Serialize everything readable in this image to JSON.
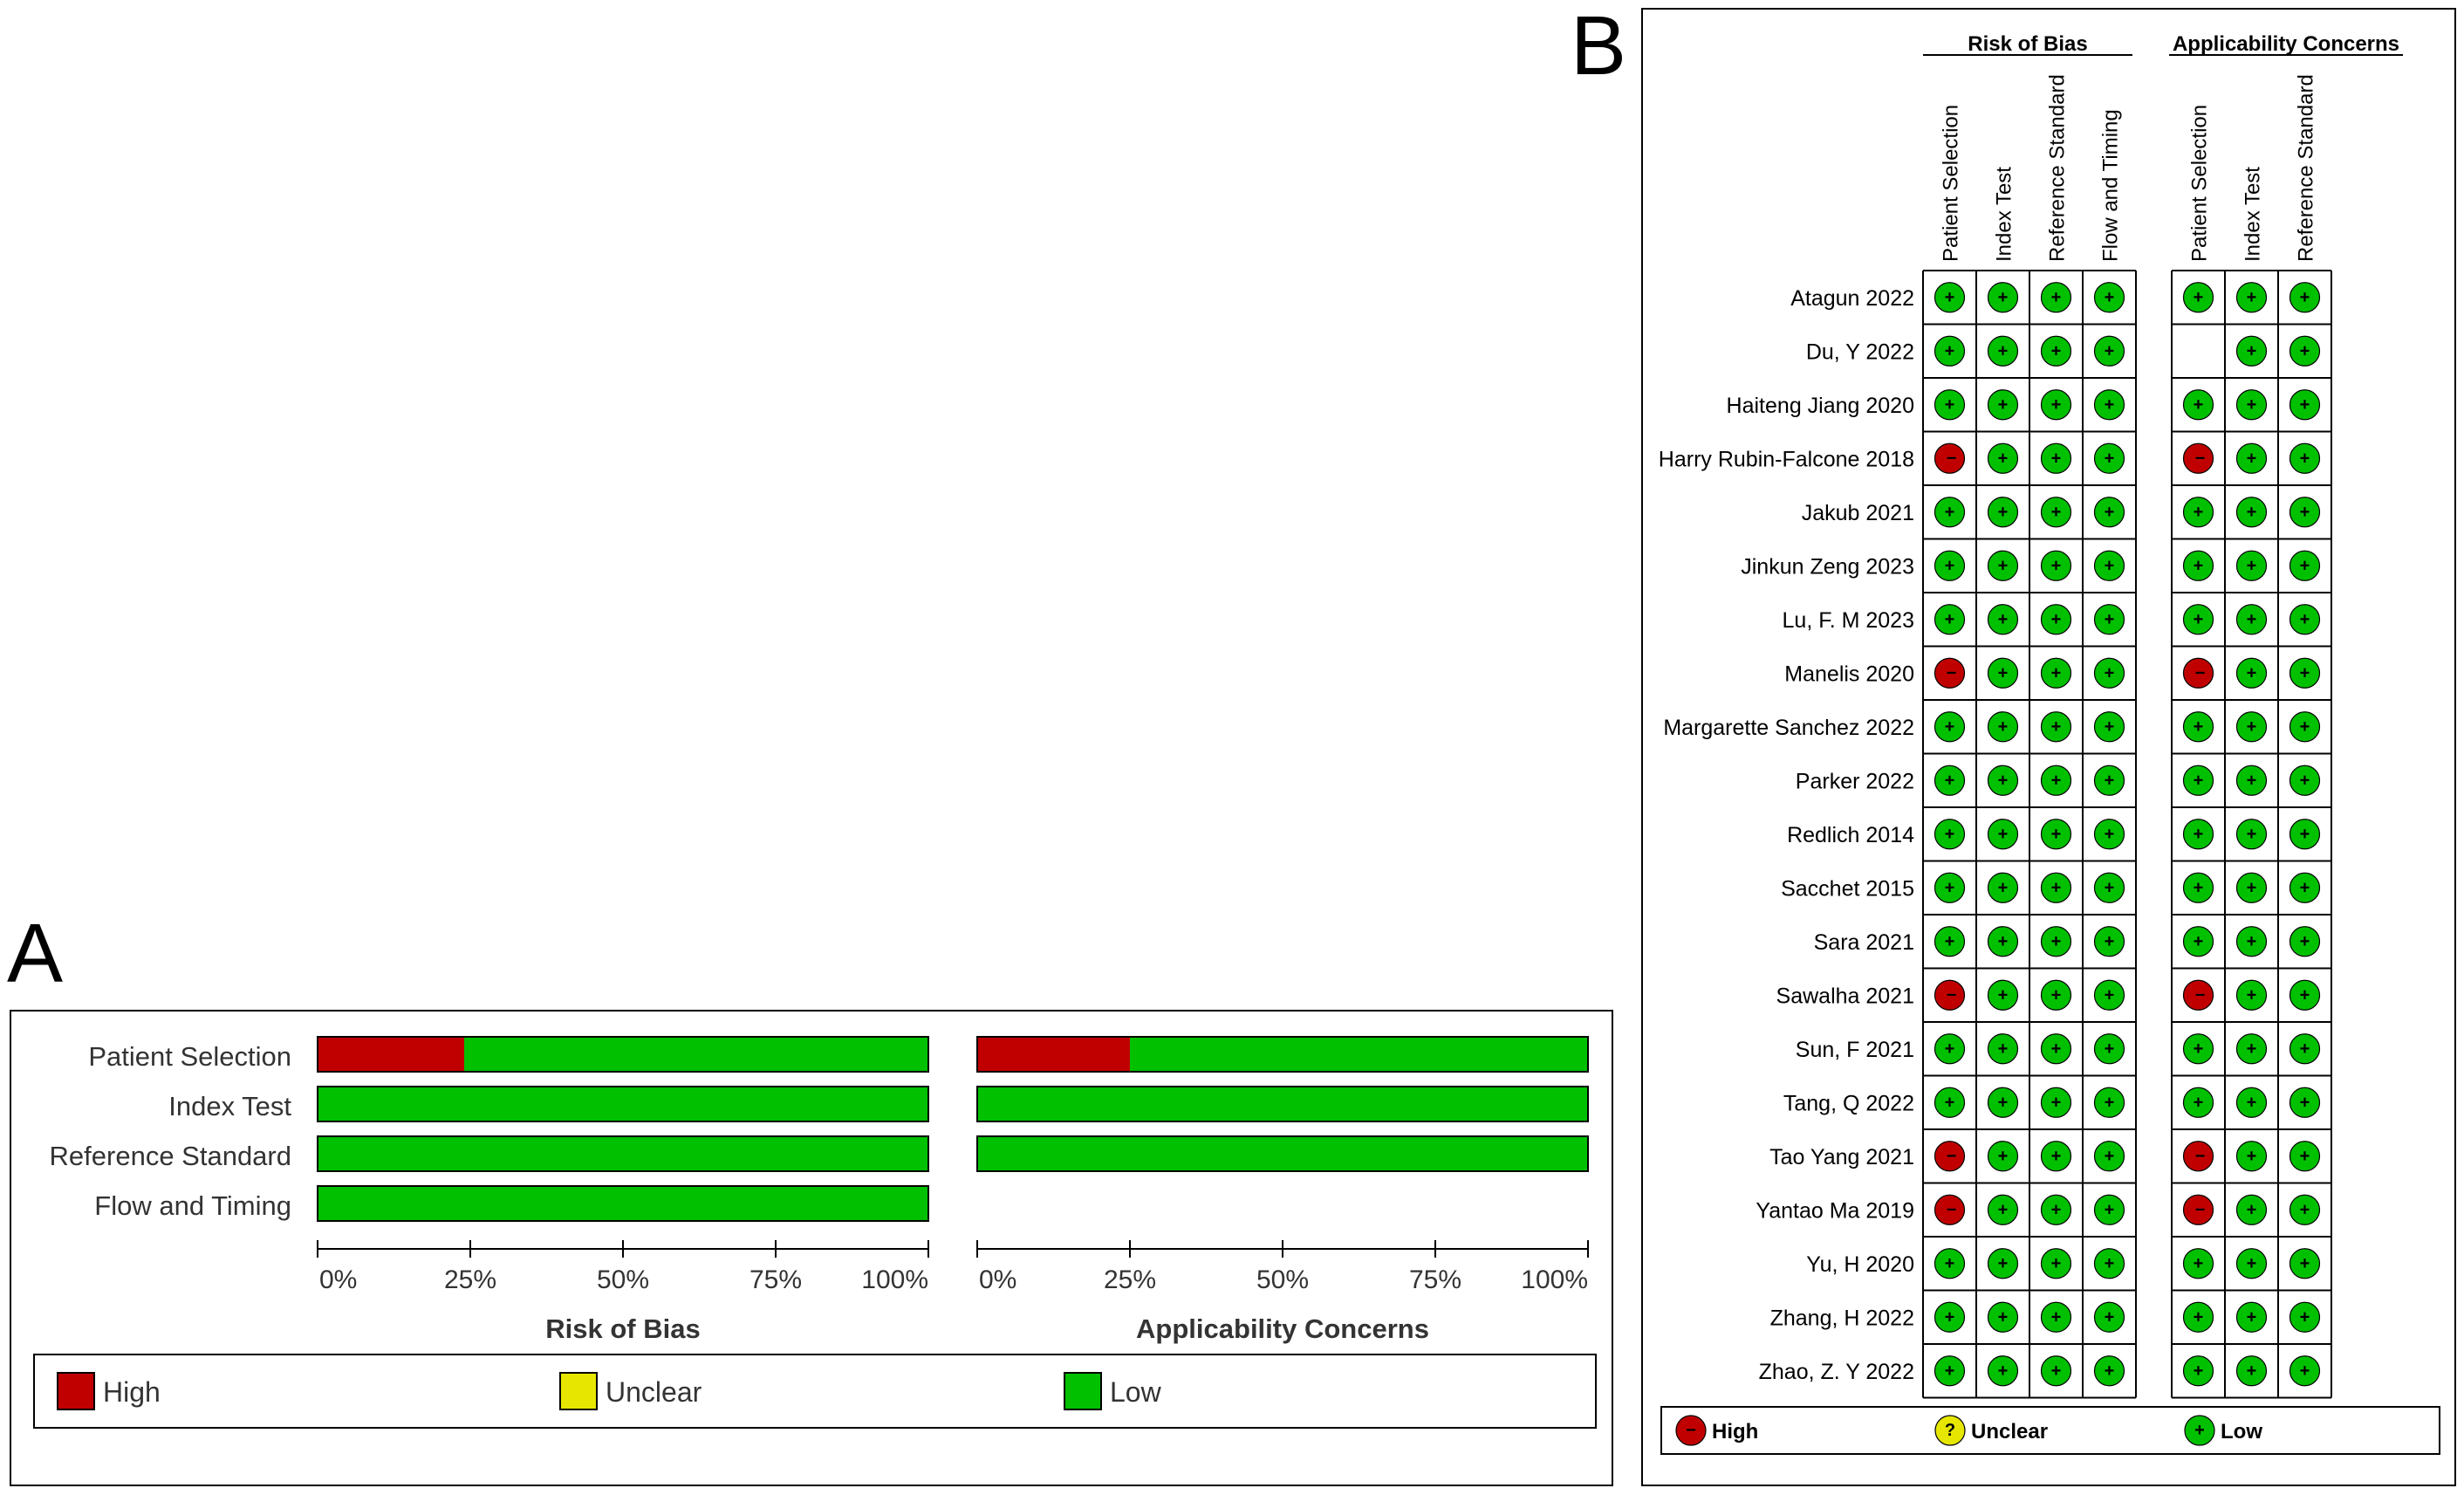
{
  "panel_a": {
    "letter": "A",
    "rows": [
      "Patient Selection",
      "Index Test",
      "Reference Standard",
      "Flow and Timing"
    ],
    "axis_ticks": [
      "0%",
      "25%",
      "50%",
      "75%",
      "100%"
    ],
    "legend": [
      {
        "label": "High",
        "color": "#c00000"
      },
      {
        "label": "Unclear",
        "color": "#e6e600"
      },
      {
        "label": "Low",
        "color": "#00c000"
      }
    ]
  },
  "panel_b": {
    "letter": "B",
    "group_titles": [
      "Risk of Bias",
      "Applicability Concerns"
    ],
    "rob_columns": [
      "Patient Selection",
      "Index Test",
      "Reference Standard",
      "Flow and Timing"
    ],
    "ac_columns": [
      "Patient Selection",
      "Index Test",
      "Reference Standard"
    ],
    "legend": [
      {
        "label": "High",
        "symbol": "−",
        "color": "#c00000"
      },
      {
        "label": "Unclear",
        "symbol": "?",
        "color": "#e6e600"
      },
      {
        "label": "Low",
        "symbol": "+",
        "color": "#00c000"
      }
    ]
  },
  "chart_data": [
    {
      "type": "bar",
      "stacked": true,
      "orientation": "horizontal",
      "title": "Risk of Bias",
      "categories": [
        "Patient Selection",
        "Index Test",
        "Reference Standard",
        "Flow and Timing"
      ],
      "series": [
        {
          "name": "High",
          "color": "#c00000",
          "values": [
            24,
            0,
            0,
            0
          ]
        },
        {
          "name": "Unclear",
          "color": "#e6e600",
          "values": [
            0,
            0,
            0,
            0
          ]
        },
        {
          "name": "Low",
          "color": "#00c000",
          "values": [
            76,
            100,
            100,
            100
          ]
        }
      ],
      "xlim": [
        0,
        100
      ],
      "xticks": [
        "0%",
        "25%",
        "50%",
        "75%",
        "100%"
      ]
    },
    {
      "type": "bar",
      "stacked": true,
      "orientation": "horizontal",
      "title": "Applicability Concerns",
      "categories": [
        "Patient Selection",
        "Index Test",
        "Reference Standard"
      ],
      "series": [
        {
          "name": "High",
          "color": "#c00000",
          "values": [
            25,
            0,
            0
          ]
        },
        {
          "name": "Unclear",
          "color": "#e6e600",
          "values": [
            0,
            0,
            0
          ]
        },
        {
          "name": "Low",
          "color": "#00c000",
          "values": [
            75,
            100,
            100
          ]
        }
      ],
      "xlim": [
        0,
        100
      ],
      "xticks": [
        "0%",
        "25%",
        "50%",
        "75%",
        "100%"
      ]
    },
    {
      "type": "table",
      "title": "Risk of bias summary",
      "group_titles": [
        "Risk of Bias",
        "Applicability Concerns"
      ],
      "columns": [
        "Patient Selection",
        "Index Test",
        "Reference Standard",
        "Flow and Timing",
        "Patient Selection",
        "Index Test",
        "Reference Standard"
      ],
      "studies": [
        {
          "name": "Atagun 2022",
          "ratings": [
            "low",
            "low",
            "low",
            "low",
            "low",
            "low",
            "low"
          ]
        },
        {
          "name": "Du, Y 2022",
          "ratings": [
            "low",
            "low",
            "low",
            "low",
            "none",
            "low",
            "low"
          ]
        },
        {
          "name": "Haiteng Jiang 2020",
          "ratings": [
            "low",
            "low",
            "low",
            "low",
            "low",
            "low",
            "low"
          ]
        },
        {
          "name": "Harry Rubin-Falcone 2018",
          "ratings": [
            "high",
            "low",
            "low",
            "low",
            "high",
            "low",
            "low"
          ]
        },
        {
          "name": "Jakub 2021",
          "ratings": [
            "low",
            "low",
            "low",
            "low",
            "low",
            "low",
            "low"
          ]
        },
        {
          "name": "Jinkun Zeng 2023",
          "ratings": [
            "low",
            "low",
            "low",
            "low",
            "low",
            "low",
            "low"
          ]
        },
        {
          "name": "Lu, F. M 2023",
          "ratings": [
            "low",
            "low",
            "low",
            "low",
            "low",
            "low",
            "low"
          ]
        },
        {
          "name": "Manelis 2020",
          "ratings": [
            "high",
            "low",
            "low",
            "low",
            "high",
            "low",
            "low"
          ]
        },
        {
          "name": "Margarette Sanchez 2022",
          "ratings": [
            "low",
            "low",
            "low",
            "low",
            "low",
            "low",
            "low"
          ]
        },
        {
          "name": "Parker 2022",
          "ratings": [
            "low",
            "low",
            "low",
            "low",
            "low",
            "low",
            "low"
          ]
        },
        {
          "name": "Redlich 2014",
          "ratings": [
            "low",
            "low",
            "low",
            "low",
            "low",
            "low",
            "low"
          ]
        },
        {
          "name": "Sacchet 2015",
          "ratings": [
            "low",
            "low",
            "low",
            "low",
            "low",
            "low",
            "low"
          ]
        },
        {
          "name": "Sara 2021",
          "ratings": [
            "low",
            "low",
            "low",
            "low",
            "low",
            "low",
            "low"
          ]
        },
        {
          "name": "Sawalha 2021",
          "ratings": [
            "high",
            "low",
            "low",
            "low",
            "high",
            "low",
            "low"
          ]
        },
        {
          "name": "Sun, F 2021",
          "ratings": [
            "low",
            "low",
            "low",
            "low",
            "low",
            "low",
            "low"
          ]
        },
        {
          "name": "Tang, Q 2022",
          "ratings": [
            "low",
            "low",
            "low",
            "low",
            "low",
            "low",
            "low"
          ]
        },
        {
          "name": "Tao Yang 2021",
          "ratings": [
            "high",
            "low",
            "low",
            "low",
            "high",
            "low",
            "low"
          ]
        },
        {
          "name": "Yantao Ma 2019",
          "ratings": [
            "high",
            "low",
            "low",
            "low",
            "high",
            "low",
            "low"
          ]
        },
        {
          "name": "Yu, H 2020",
          "ratings": [
            "low",
            "low",
            "low",
            "low",
            "low",
            "low",
            "low"
          ]
        },
        {
          "name": "Zhang, H 2022",
          "ratings": [
            "low",
            "low",
            "low",
            "low",
            "low",
            "low",
            "low"
          ]
        },
        {
          "name": "Zhao, Z. Y 2022",
          "ratings": [
            "low",
            "low",
            "low",
            "low",
            "low",
            "low",
            "low"
          ]
        }
      ]
    }
  ]
}
